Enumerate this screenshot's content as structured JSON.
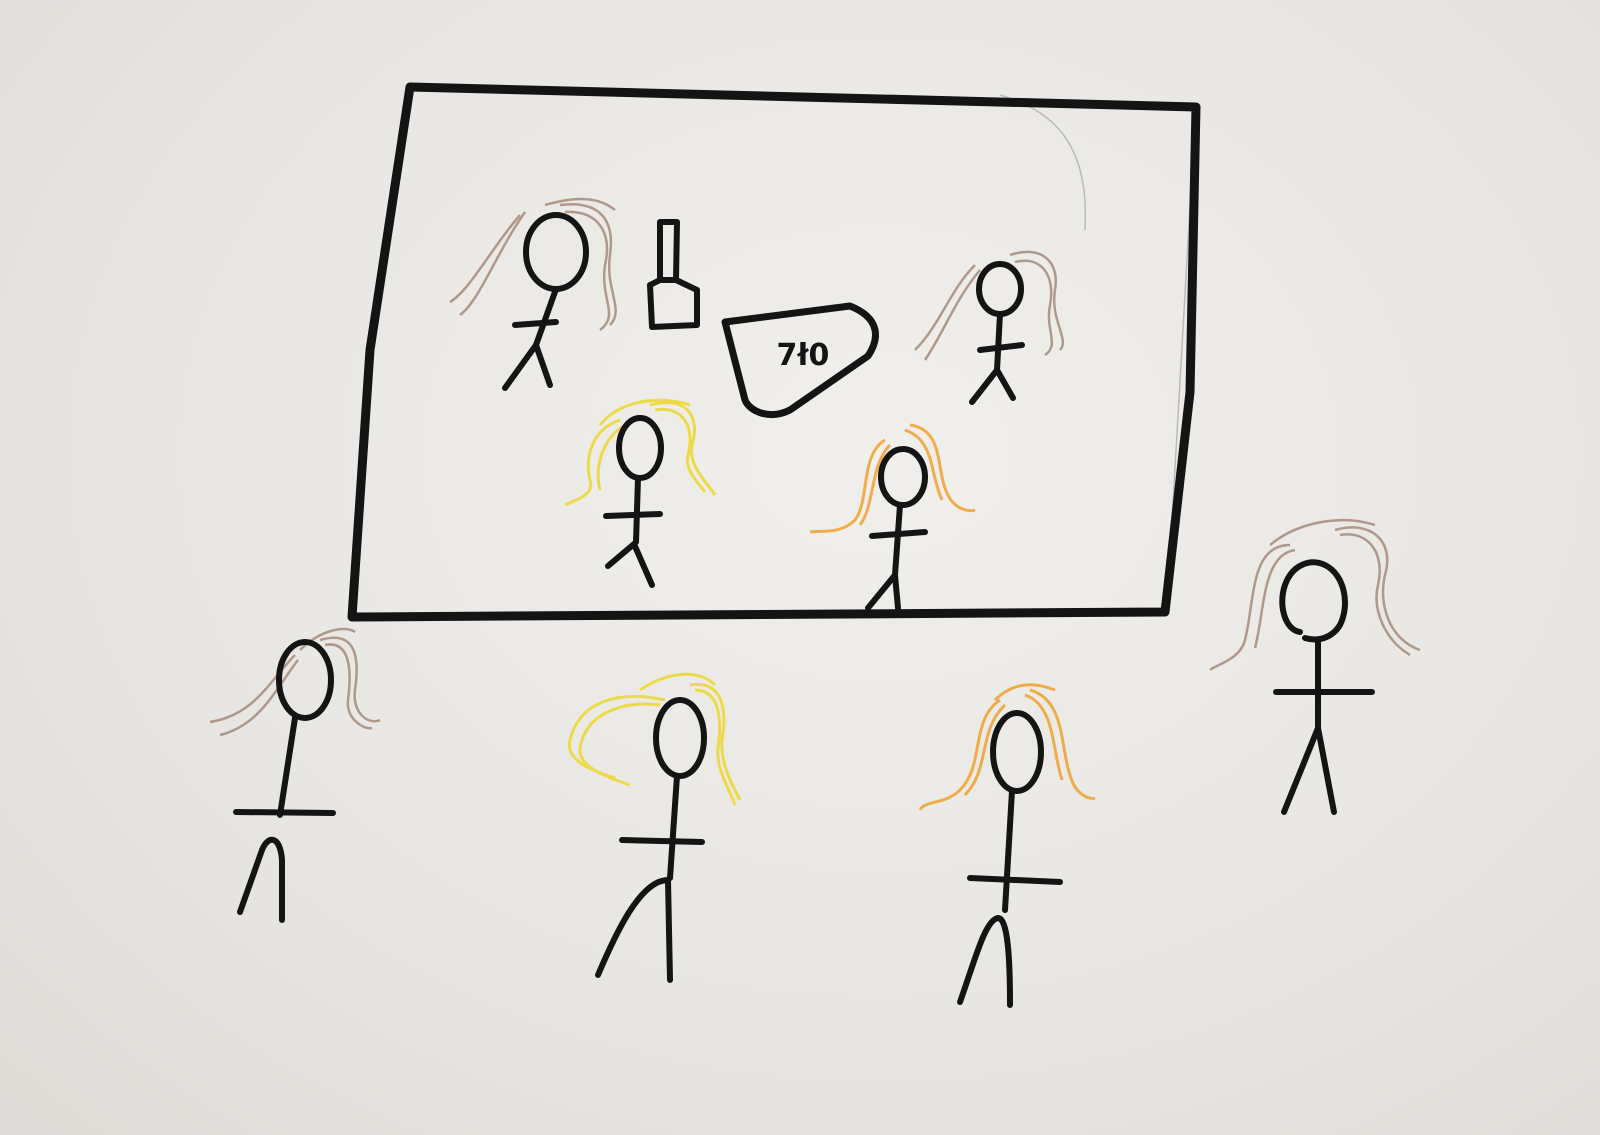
{
  "sign_text": "7ł0",
  "ink_color": "#141414",
  "hair_colors": {
    "brown": "#a58b7d",
    "yellow": "#ecd93a",
    "orange": "#f0a63a"
  }
}
